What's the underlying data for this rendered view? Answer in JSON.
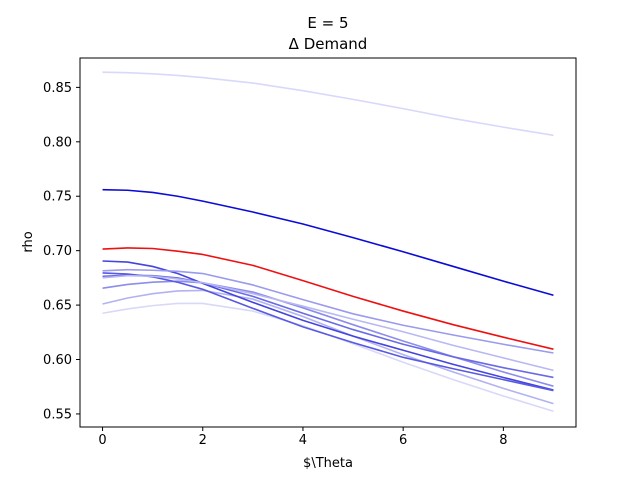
{
  "chart_data": {
    "type": "line",
    "title": "E = 5",
    "subtitle": "Δ Demand",
    "xlabel": "$\\Theta",
    "ylabel": "rho",
    "xlim": [
      -0.45,
      9.45
    ],
    "ylim": [
      0.538,
      0.877
    ],
    "grid": false,
    "x": [
      0,
      0.5,
      1,
      1.5,
      2,
      3,
      4,
      5,
      6,
      7,
      8,
      9
    ],
    "x_ticks": [
      0,
      2,
      4,
      6,
      8
    ],
    "y_ticks": [
      0.55,
      0.6,
      0.65,
      0.7,
      0.75,
      0.8,
      0.85
    ],
    "series": [
      {
        "color": "#d8d8fb",
        "values": [
          0.864,
          0.8635,
          0.8625,
          0.861,
          0.859,
          0.854,
          0.847,
          0.839,
          0.8305,
          0.8215,
          0.8135,
          0.806
        ]
      },
      {
        "color": "#0b0bd8",
        "values": [
          0.756,
          0.7555,
          0.7535,
          0.75,
          0.7455,
          0.7355,
          0.7245,
          0.712,
          0.699,
          0.6855,
          0.672,
          0.659
        ]
      },
      {
        "color": "#d8d8f8",
        "values": [
          0.6425,
          0.6465,
          0.6495,
          0.6515,
          0.6515,
          0.6445,
          0.631,
          0.6145,
          0.5975,
          0.5815,
          0.5665,
          0.5525
        ]
      },
      {
        "color": "#b2b2f2",
        "values": [
          0.651,
          0.6565,
          0.6605,
          0.663,
          0.6635,
          0.6555,
          0.6395,
          0.6215,
          0.6045,
          0.5885,
          0.5735,
          0.5595
        ]
      },
      {
        "color": "#8c8cec",
        "values": [
          0.6655,
          0.669,
          0.671,
          0.672,
          0.6705,
          0.662,
          0.6475,
          0.632,
          0.617,
          0.6025,
          0.5885,
          0.5755
        ]
      },
      {
        "color": "#6a6ae6",
        "values": [
          0.6765,
          0.6775,
          0.677,
          0.675,
          0.6705,
          0.658,
          0.6425,
          0.6275,
          0.614,
          0.6025,
          0.5925,
          0.5835
        ]
      },
      {
        "color": "#4444de",
        "values": [
          0.6905,
          0.6895,
          0.6855,
          0.679,
          0.67,
          0.6525,
          0.636,
          0.6215,
          0.6085,
          0.5955,
          0.5835,
          0.572
        ]
      },
      {
        "color": "#5858e2",
        "values": [
          0.6795,
          0.6785,
          0.676,
          0.671,
          0.6645,
          0.647,
          0.63,
          0.6155,
          0.602,
          0.5915,
          0.5815,
          0.5715
        ]
      },
      {
        "color": "#9a9aee",
        "values": [
          0.6815,
          0.6825,
          0.682,
          0.681,
          0.679,
          0.6685,
          0.655,
          0.642,
          0.6315,
          0.6225,
          0.614,
          0.606
        ]
      },
      {
        "color": "#b8b8f4",
        "values": [
          0.675,
          0.677,
          0.6765,
          0.674,
          0.6705,
          0.6605,
          0.649,
          0.637,
          0.6255,
          0.613,
          0.6015,
          0.59
        ]
      },
      {
        "color": "#ee1111",
        "values": [
          0.7015,
          0.7025,
          0.702,
          0.6995,
          0.6965,
          0.6865,
          0.6725,
          0.658,
          0.6445,
          0.632,
          0.6205,
          0.6095
        ]
      }
    ]
  }
}
